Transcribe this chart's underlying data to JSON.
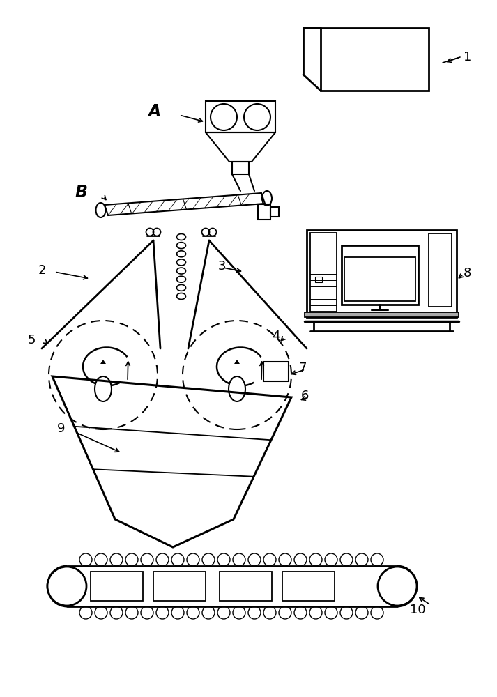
{
  "bg_color": "#ffffff",
  "line_color": "#000000",
  "fig_width": 7.13,
  "fig_height": 10.0,
  "dpi": 100
}
